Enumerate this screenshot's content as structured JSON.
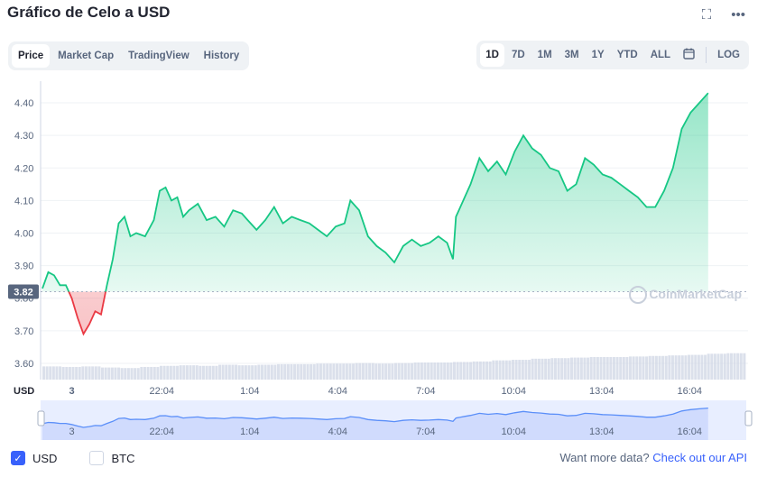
{
  "header": {
    "title": "Gráfico de Celo a USD",
    "fullscreen_icon": "fullscreen-icon",
    "more_icon": "more-icon"
  },
  "tabs": [
    "Price",
    "Market Cap",
    "TradingView",
    "History"
  ],
  "ranges": [
    "1D",
    "7D",
    "1M",
    "3M",
    "1Y",
    "YTD",
    "ALL"
  ],
  "calendar_icon": "calendar-icon",
  "log_label": "LOG",
  "currency_label": "USD",
  "current_price_label": "3.82",
  "watermark": "CoinMarketCap",
  "legend": {
    "usd": "USD",
    "btc": "BTC"
  },
  "footer": {
    "text": "Want more data?",
    "link": "Check out our API"
  },
  "colors": {
    "up": "#16c784",
    "down": "#ea3943",
    "accent": "#3861fb",
    "nav_line": "#5b8ff9"
  },
  "chart_data": {
    "type": "area",
    "y_ticks": [
      "3.60",
      "3.70",
      "3.80",
      "3.90",
      "4.00",
      "4.10",
      "4.20",
      "4.30",
      "4.40"
    ],
    "ylim": [
      3.55,
      4.45
    ],
    "baseline": 3.82,
    "x_tick_labels": [
      "3",
      "22:04",
      "1:04",
      "4:04",
      "7:04",
      "10:04",
      "13:04",
      "16:04"
    ],
    "x_tick_hours": [
      0,
      3.07,
      6.07,
      9.07,
      12.07,
      15.07,
      18.07,
      21.07
    ],
    "x_range_hours": [
      -1,
      23
    ],
    "series": [
      {
        "points": [
          [
            -1.0,
            3.83
          ],
          [
            -0.8,
            3.88
          ],
          [
            -0.6,
            3.87
          ],
          [
            -0.4,
            3.84
          ],
          [
            -0.2,
            3.84
          ],
          [
            0.0,
            3.8
          ],
          [
            0.2,
            3.74
          ],
          [
            0.4,
            3.69
          ],
          [
            0.6,
            3.72
          ],
          [
            0.8,
            3.76
          ],
          [
            1.0,
            3.75
          ],
          [
            1.2,
            3.84
          ],
          [
            1.4,
            3.92
          ],
          [
            1.6,
            4.03
          ],
          [
            1.8,
            4.05
          ],
          [
            2.0,
            3.99
          ],
          [
            2.2,
            4.0
          ],
          [
            2.5,
            3.99
          ],
          [
            2.8,
            4.04
          ],
          [
            3.0,
            4.13
          ],
          [
            3.2,
            4.14
          ],
          [
            3.4,
            4.1
          ],
          [
            3.6,
            4.11
          ],
          [
            3.8,
            4.05
          ],
          [
            4.0,
            4.07
          ],
          [
            4.3,
            4.09
          ],
          [
            4.6,
            4.04
          ],
          [
            4.9,
            4.05
          ],
          [
            5.2,
            4.02
          ],
          [
            5.5,
            4.07
          ],
          [
            5.8,
            4.06
          ],
          [
            6.0,
            4.04
          ],
          [
            6.3,
            4.01
          ],
          [
            6.6,
            4.04
          ],
          [
            6.9,
            4.08
          ],
          [
            7.2,
            4.03
          ],
          [
            7.5,
            4.05
          ],
          [
            7.8,
            4.04
          ],
          [
            8.1,
            4.03
          ],
          [
            8.4,
            4.01
          ],
          [
            8.7,
            3.99
          ],
          [
            9.0,
            4.02
          ],
          [
            9.3,
            4.03
          ],
          [
            9.5,
            4.1
          ],
          [
            9.8,
            4.07
          ],
          [
            10.1,
            3.99
          ],
          [
            10.4,
            3.96
          ],
          [
            10.7,
            3.94
          ],
          [
            11.0,
            3.91
          ],
          [
            11.3,
            3.96
          ],
          [
            11.6,
            3.98
          ],
          [
            11.9,
            3.96
          ],
          [
            12.2,
            3.97
          ],
          [
            12.5,
            3.99
          ],
          [
            12.8,
            3.97
          ],
          [
            13.0,
            3.92
          ],
          [
            13.1,
            4.05
          ],
          [
            13.4,
            4.11
          ],
          [
            13.6,
            4.15
          ],
          [
            13.9,
            4.23
          ],
          [
            14.2,
            4.19
          ],
          [
            14.5,
            4.22
          ],
          [
            14.8,
            4.18
          ],
          [
            15.1,
            4.25
          ],
          [
            15.4,
            4.3
          ],
          [
            15.7,
            4.26
          ],
          [
            16.0,
            4.24
          ],
          [
            16.3,
            4.2
          ],
          [
            16.6,
            4.19
          ],
          [
            16.9,
            4.13
          ],
          [
            17.2,
            4.15
          ],
          [
            17.5,
            4.23
          ],
          [
            17.8,
            4.21
          ],
          [
            18.1,
            4.18
          ],
          [
            18.4,
            4.17
          ],
          [
            18.7,
            4.15
          ],
          [
            19.0,
            4.13
          ],
          [
            19.3,
            4.11
          ],
          [
            19.6,
            4.08
          ],
          [
            19.9,
            4.08
          ],
          [
            20.2,
            4.13
          ],
          [
            20.5,
            4.2
          ],
          [
            20.8,
            4.32
          ],
          [
            21.1,
            4.37
          ],
          [
            21.4,
            4.4
          ],
          [
            21.7,
            4.43
          ]
        ]
      }
    ],
    "volume": [
      0.24,
      0.23,
      0.24,
      0.22,
      0.21,
      0.23,
      0.25,
      0.26,
      0.25,
      0.27,
      0.26,
      0.27,
      0.28,
      0.28,
      0.29,
      0.29,
      0.3,
      0.29,
      0.3,
      0.31,
      0.31,
      0.32,
      0.33,
      0.35,
      0.36,
      0.38,
      0.39,
      0.4,
      0.41,
      0.41,
      0.42,
      0.43,
      0.44,
      0.45,
      0.47,
      0.48
    ]
  }
}
